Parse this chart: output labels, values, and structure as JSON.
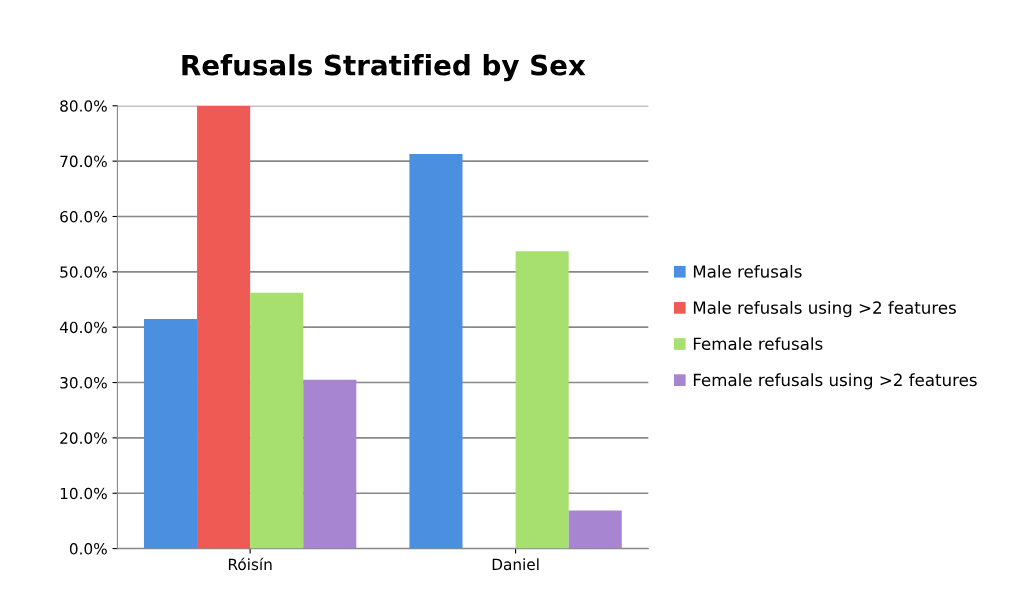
{
  "chart_data": {
    "type": "bar",
    "title": "Refusals Stratified by Sex",
    "categories": [
      "Róisín",
      "Daniel"
    ],
    "series": [
      {
        "name": "Male refusals",
        "color": "#4a8fe0",
        "values": [
          41.5,
          71.3
        ]
      },
      {
        "name": "Male refusals using >2 features",
        "color": "#f05a55",
        "values": [
          80.0,
          0
        ]
      },
      {
        "name": "Female refusals",
        "color": "#a8e070",
        "values": [
          46.2,
          53.7
        ]
      },
      {
        "name": "Female refusals using >2 features",
        "color": "#a885d0",
        "values": [
          30.5,
          6.9
        ]
      }
    ],
    "ylim": [
      0,
      80
    ],
    "yticks": [
      {
        "value": 0,
        "label": "0.0%"
      },
      {
        "value": 10,
        "label": "10.0%"
      },
      {
        "value": 20,
        "label": "20.0%"
      },
      {
        "value": 30,
        "label": "30.0%"
      },
      {
        "value": 40,
        "label": "40.0%"
      },
      {
        "value": 50,
        "label": "50.0%"
      },
      {
        "value": 60,
        "label": "60.0%"
      },
      {
        "value": 70,
        "label": "70.0%"
      },
      {
        "value": 80,
        "label": "80.0%"
      }
    ],
    "grid": "y",
    "legend": "right"
  }
}
